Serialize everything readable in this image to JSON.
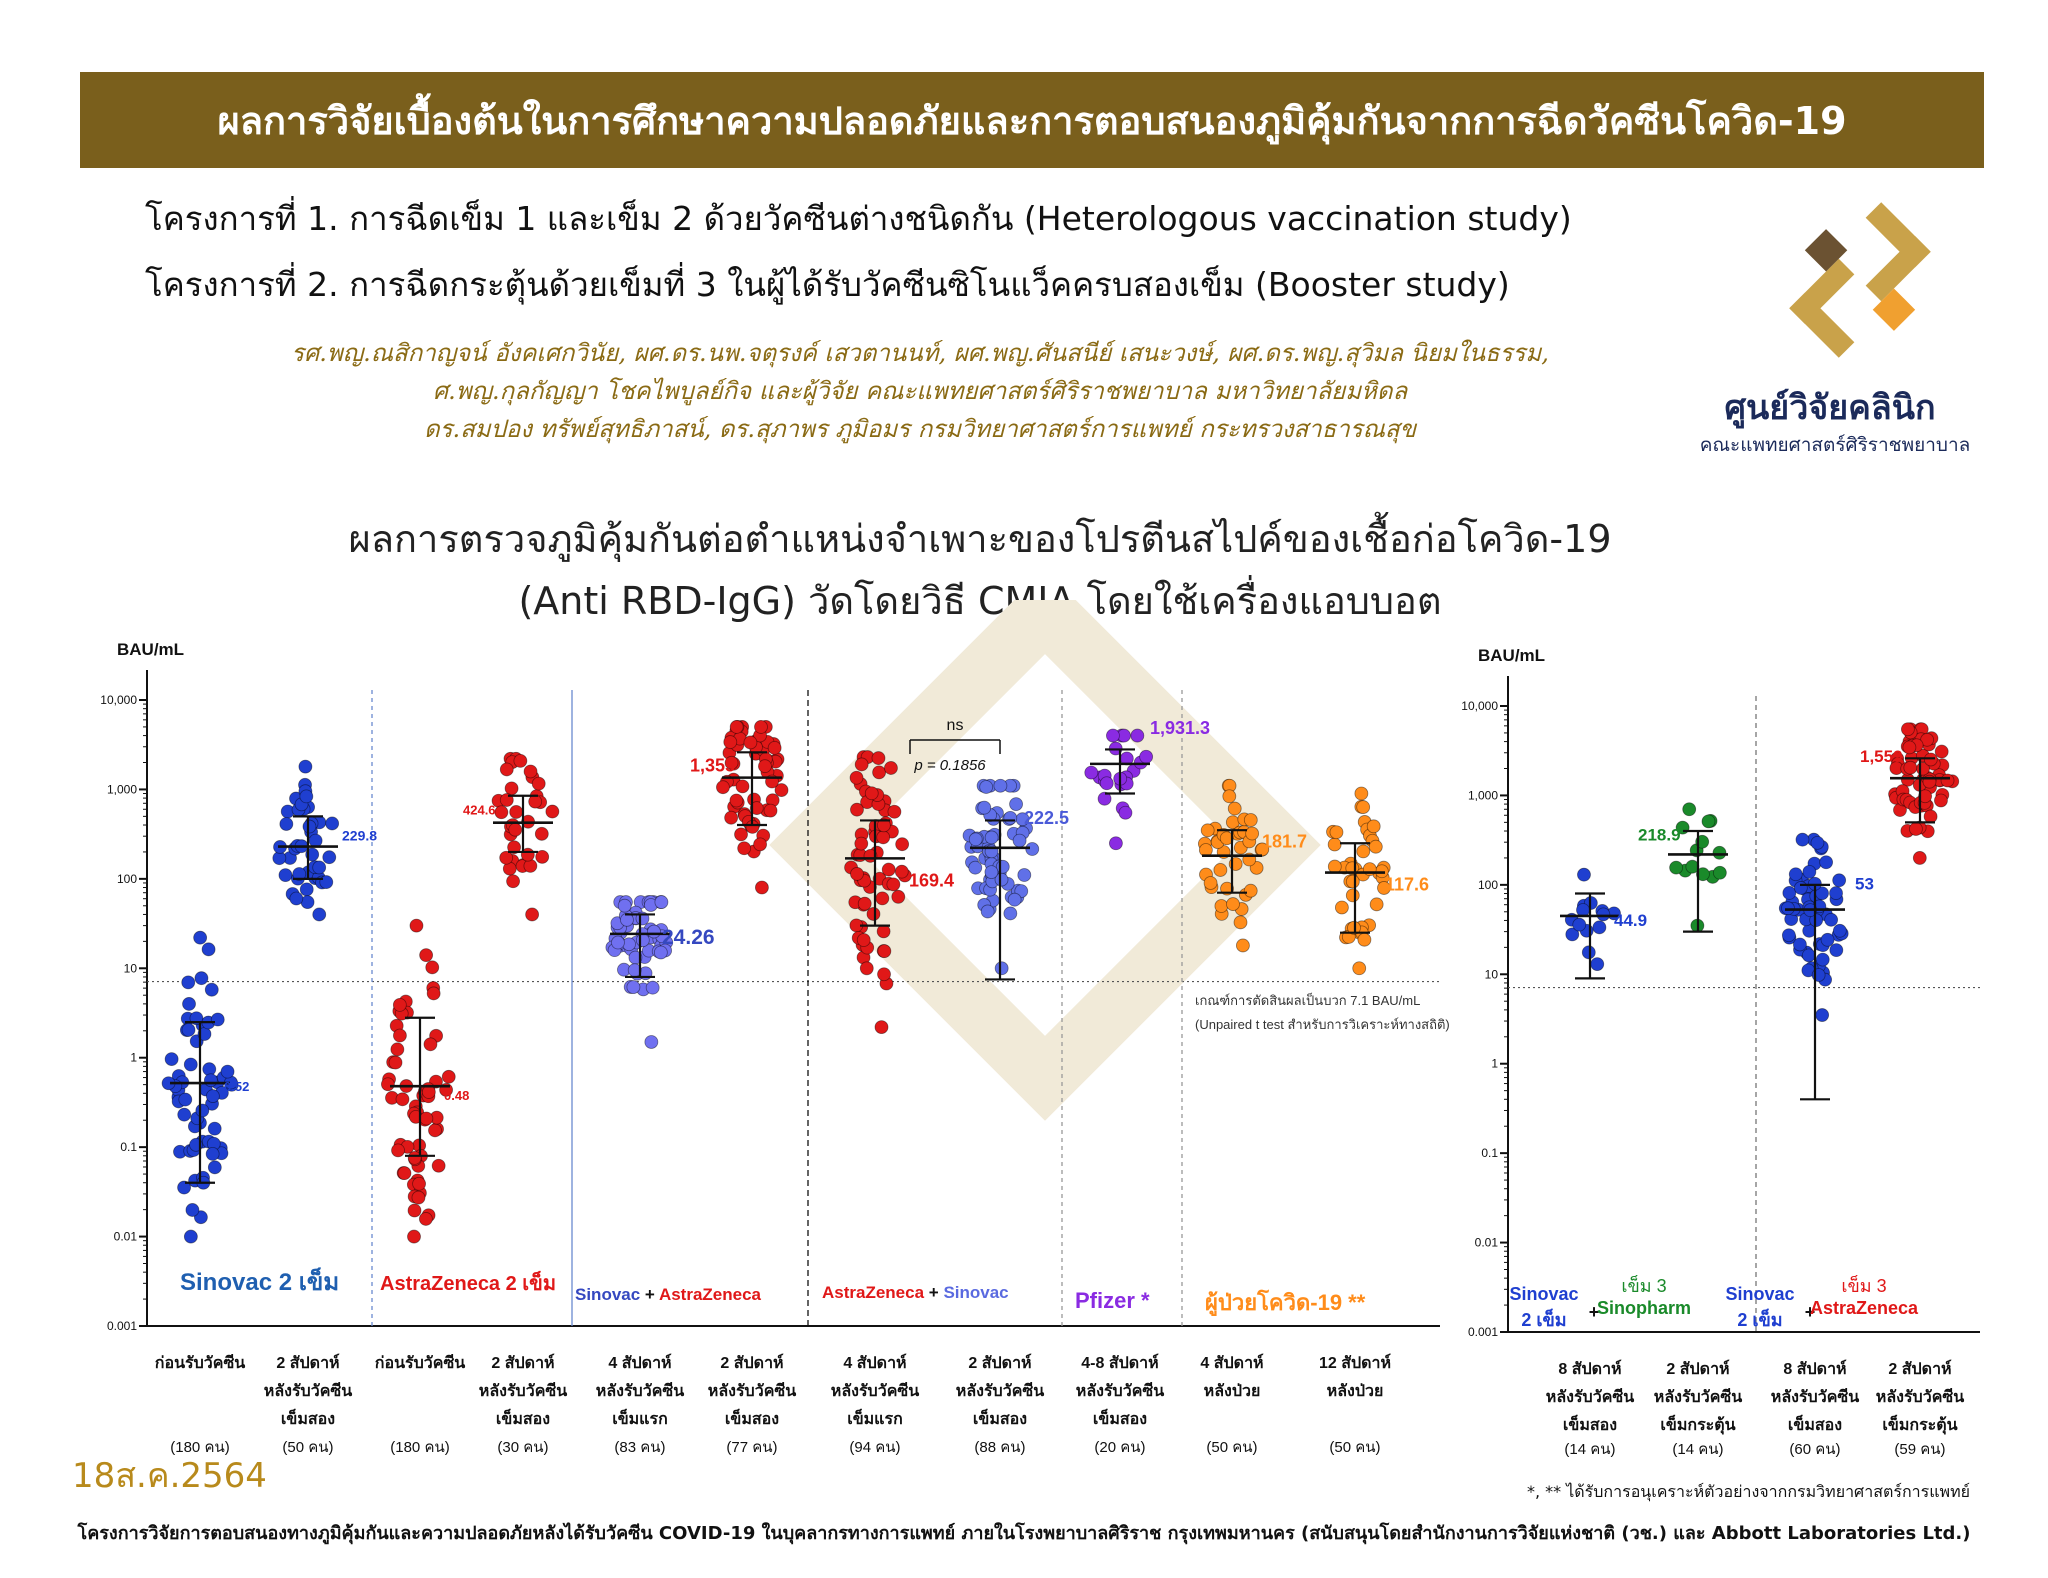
{
  "header": {
    "banner_title": "ผลการวิจัยเบื้องต้นในการศึกษาความปลอดภัยและการตอบสนองภูมิคุ้มกันจากการฉีดวัคซีนโควิด-19",
    "project1": "โครงการที่ 1. การฉีดเข็ม 1 และเข็ม 2 ด้วยวัคซีนต่างชนิดกัน (Heterologous vaccination study)",
    "project2": "โครงการที่ 2. การฉีดกระตุ้นด้วยเข็มที่ 3 ในผู้ได้รับวัคซีนซิโนแว็คครบสองเข็ม (Booster study)",
    "authors_line1": "รศ.พญ.ณสิกาญจน์ อังคเศกวินัย, ผศ.ดร.นพ.จตุรงค์ เสวตานนท์, ผศ.พญ.ศันสนีย์ เสนะวงษ์, ผศ.ดร.พญ.สุวิมล นิยมในธรรม,",
    "authors_line2": "ศ.พญ.กุลกัญญา โชคไพบูลย์กิจ และผู้วิจัย คณะแพทยศาสตร์ศิริราชพยาบาล มหาวิทยาลัยมหิดล",
    "authors_line3": "ดร.สมปอง ทรัพย์สุทธิภาสน์, ดร.สุภาพร ภูมิอมร กรมวิทยาศาสตร์การแพทย์ กระทรวงสาธารณสุข"
  },
  "logo": {
    "name": "ศูนย์วิจัยคลินิก",
    "sub": "คณะแพทยศาสตร์ศิริราชพยาบาล",
    "colors": {
      "gold": "#c9a24a",
      "orange": "#f0a030",
      "brown": "#6b5232"
    }
  },
  "chart_title_line1": "ผลการตรวจภูมิคุ้มกันต่อตำแหน่งจำเพาะของโปรตีนสไปค์ของเชื้อก่อโควิด-19",
  "chart_title_line2": "(Anti RBD-IgG) วัดโดยวิธี CMIA โดยใช้เครื่องแอบบอต",
  "chart_data": [
    {
      "type": "scatter",
      "title": "",
      "ylabel": "BAU/mL",
      "yscale": "log",
      "ylim": [
        0.001,
        10000
      ],
      "yticks": [
        "10,000",
        "1,000",
        "100",
        "10",
        "1",
        "0.1",
        "0.01",
        "0.001"
      ],
      "cutoff_value": 7.1,
      "cutoff_note": [
        "เกณฑ์การตัดสินผลเป็นบวก 7.1 BAU/mL",
        "(Unpaired t test สำหรับการวิเคราะห์ทางสถิติ)"
      ],
      "comparison": {
        "label": "ns",
        "p": "p = 0.1856",
        "between": [
          6,
          7
        ]
      },
      "groups": [
        {
          "x": [
            "ก่อนรับวัคซีน"
          ],
          "n": "(180 คน)",
          "gmt": 0.52,
          "label": "0.52",
          "low": 0.04,
          "high": 2.5,
          "min": 0.01,
          "max": 22,
          "color": "#1f3fd0",
          "labelColor": "#1f3fd0"
        },
        {
          "x": [
            "2 สัปดาห์",
            "หลังรับวัคซีน",
            "เข็มสอง"
          ],
          "n": "(50 คน)",
          "gmt": 229.8,
          "label": "229.8",
          "low": 100,
          "high": 500,
          "min": 40,
          "max": 1800,
          "color": "#1f3fd0",
          "labelColor": "#1f3fd0"
        },
        {
          "x": [
            "ก่อนรับวัคซีน"
          ],
          "n": "(180 คน)",
          "gmt": 0.48,
          "label": "0.48",
          "low": 0.08,
          "high": 2.8,
          "min": 0.01,
          "max": 30,
          "color": "#e01818",
          "labelColor": "#e01818"
        },
        {
          "x": [
            "2 สัปดาห์",
            "หลังรับวัคซีน",
            "เข็มสอง"
          ],
          "n": "(30 คน)",
          "gmt": 424.6,
          "label": "424.6",
          "low": 200,
          "high": 850,
          "min": 40,
          "max": 2200,
          "color": "#e01818",
          "labelColor": "#e01818"
        },
        {
          "x": [
            "4 สัปดาห์",
            "หลังรับวัคซีน",
            "เข็มแรก"
          ],
          "n": "(83 คน)",
          "gmt": 24.26,
          "label": "24.26",
          "low": 8,
          "high": 40,
          "min": 1.5,
          "max": 55,
          "color": "#7070f0",
          "labelColor": "#3548c0"
        },
        {
          "x": [
            "2 สัปดาห์",
            "หลังรับวัคซีน",
            "เข็มสอง"
          ],
          "n": "(77 คน)",
          "gmt": 1355,
          "label": "1,355",
          "low": 400,
          "high": 2600,
          "min": 80,
          "max": 5000,
          "color": "#e01818",
          "labelColor": "#e01818"
        },
        {
          "x": [
            "4 สัปดาห์",
            "หลังรับวัคซีน",
            "เข็มแรก"
          ],
          "n": "(94 คน)",
          "gmt": 169.4,
          "label": "169.4",
          "low": 30,
          "high": 450,
          "min": 2.2,
          "max": 2300,
          "color": "#e01818",
          "labelColor": "#e01818"
        },
        {
          "x": [
            "2 สัปดาห์",
            "หลังรับวัคซีน",
            "เข็มสอง"
          ],
          "n": "(88 คน)",
          "gmt": 222.5,
          "label": "222.5",
          "low": 7.5,
          "high": 450,
          "min": 10,
          "max": 1100,
          "color": "#6070e8",
          "labelColor": "#4a5ad8"
        },
        {
          "x": [
            "4-8 สัปดาห์",
            "หลังรับวัคซีน",
            "เข็มสอง"
          ],
          "n": "(20 คน)",
          "gmt": 1931.3,
          "label": "1,931.3",
          "low": 900,
          "high": 2800,
          "min": 250,
          "max": 4000,
          "color": "#8a2be2",
          "labelColor": "#8a2be2"
        },
        {
          "x": [
            "4 สัปดาห์",
            "หลังป่วย"
          ],
          "n": "(50 คน)",
          "gmt": 181.7,
          "label": "181.7",
          "low": 70,
          "high": 350,
          "min": 18,
          "max": 1100,
          "color": "#ff8c1a",
          "labelColor": "#ff8c1a"
        },
        {
          "x": [
            "12 สัปดาห์",
            "หลังป่วย"
          ],
          "n": "(50 คน)",
          "gmt": 117.6,
          "label": "117.6",
          "low": 25,
          "high": 250,
          "min": 10,
          "max": 900,
          "color": "#ff8c1a",
          "labelColor": "#ff8c1a"
        }
      ],
      "regimens": [
        {
          "parts": [
            {
              "text": "Sinovac 2",
              "color": "#1f5fb0"
            },
            {
              "text": " เข็ม",
              "color": "#1f5fb0"
            }
          ]
        },
        {
          "parts": [
            {
              "text": "AstraZeneca 2",
              "color": "#e01818"
            },
            {
              "text": " เข็ม",
              "color": "#e01818"
            }
          ]
        },
        {
          "parts": [
            {
              "text": "Sinovac",
              "color": "#3548c0"
            },
            {
              "text": " + ",
              "color": "#111111"
            },
            {
              "text": "AstraZeneca",
              "color": "#e01818"
            }
          ]
        },
        {
          "parts": [
            {
              "text": "AstraZeneca",
              "color": "#e01818"
            },
            {
              "text": " + ",
              "color": "#111111"
            },
            {
              "text": "Sinovac",
              "color": "#5a6ae0"
            }
          ]
        },
        {
          "parts": [
            {
              "text": "Pfizer *",
              "color": "#8a2be2"
            }
          ]
        },
        {
          "parts": [
            {
              "text": "ผู้ป่วยโควิด-19 **",
              "color": "#ff8c1a"
            }
          ]
        }
      ]
    },
    {
      "type": "scatter",
      "title": "",
      "ylabel": "BAU/mL",
      "yscale": "log",
      "ylim": [
        0.001,
        10000
      ],
      "yticks": [
        "10,000",
        "1,000",
        "100",
        "10",
        "1",
        "0.1",
        "0.01",
        "0.001"
      ],
      "cutoff_value": 7.1,
      "groups": [
        {
          "x": [
            "8 สัปดาห์",
            "หลังรับวัคซีน",
            "เข็มสอง"
          ],
          "n": "(14 คน)",
          "gmt": 44.9,
          "label": "44.9",
          "low": 9,
          "high": 80,
          "min": 13,
          "max": 130,
          "color": "#1f3fd0",
          "labelColor": "#1f3fd0"
        },
        {
          "x": [
            "2 สัปดาห์",
            "หลังรับวัคซีน",
            "เข็มกระตุ้น"
          ],
          "n": "(14 คน)",
          "gmt": 218.9,
          "label": "218.9",
          "low": 30,
          "high": 400,
          "min": 35,
          "max": 700,
          "color": "#1a8a2a",
          "labelColor": "#1a8a2a"
        },
        {
          "x": [
            "8 สัปดาห์",
            "หลังรับวัคซีน",
            "เข็มสอง"
          ],
          "n": "(60 คน)",
          "gmt": 53,
          "label": "53",
          "low": 0.4,
          "high": 100,
          "min": 3.5,
          "max": 320,
          "color": "#1f3fd0",
          "labelColor": "#1f3fd0"
        },
        {
          "x": [
            "2 สัปดาห์",
            "หลังรับวัคซีน",
            "เข็มกระตุ้น"
          ],
          "n": "(59 คน)",
          "gmt": 1559,
          "label": "1,559",
          "low": 500,
          "high": 2600,
          "min": 200,
          "max": 5500,
          "color": "#e01818",
          "labelColor": "#e01818"
        }
      ],
      "regimens": [
        {
          "lines": [
            {
              "text": "Sinovac",
              "color": "#1f3fd0"
            },
            {
              "text": "2 เข็ม",
              "color": "#1f3fd0"
            }
          ],
          "plus": "+",
          "booster": [
            {
              "text": "เข็ม 3",
              "color": "#1a8a2a"
            },
            {
              "text": "Sinopharm",
              "color": "#1a8a2a"
            }
          ]
        },
        {
          "lines": [
            {
              "text": "Sinovac",
              "color": "#1f3fd0"
            },
            {
              "text": "2 เข็ม",
              "color": "#1f3fd0"
            }
          ],
          "plus": "+",
          "booster": [
            {
              "text": "เข็ม 3",
              "color": "#e01818"
            },
            {
              "text": "AstraZeneca",
              "color": "#e01818"
            }
          ]
        }
      ]
    }
  ],
  "date_stamp": "18ส.ค.2564",
  "footnote": "*, ** ได้รับการอนุเคราะห์ตัวอย่างจากกรมวิทยาศาสตร์การแพทย์",
  "footer": "โครงการวิจัยการตอบสนองทางภูมิคุ้มกันและความปลอดภัยหลังได้รับวัคซีน COVID-19 ในบุคลากรทางการแพทย์ ภายในโรงพยาบาลศิริราช กรุงเทพมหานคร (สนับสนุนโดยสำนักงานการวิจัยแห่งชาติ (วช.) และ Abbott Laboratories Ltd.)"
}
